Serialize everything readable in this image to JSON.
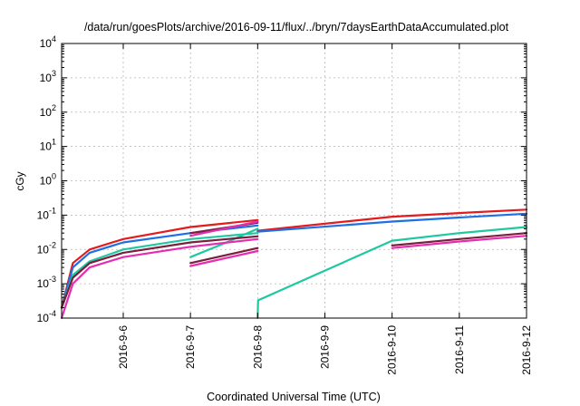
{
  "chart_data": {
    "type": "line",
    "title": "/data/run/goesPlots/archive/2016-09-11/flux/../bryn/7daysEarthDataAccumulated.plot",
    "xlabel": "Coordinated Universal Time (UTC)",
    "ylabel": "cGy",
    "y_scale": "log",
    "ylim": [
      0.0001,
      10000
    ],
    "y_ticks": [
      {
        "value": 0.0001,
        "base": "10",
        "exp": "-4"
      },
      {
        "value": 0.001,
        "base": "10",
        "exp": "-3"
      },
      {
        "value": 0.01,
        "base": "10",
        "exp": "-2"
      },
      {
        "value": 0.1,
        "base": "10",
        "exp": "-1"
      },
      {
        "value": 1,
        "base": "10",
        "exp": "0"
      },
      {
        "value": 10,
        "base": "10",
        "exp": "1"
      },
      {
        "value": 100,
        "base": "10",
        "exp": "2"
      },
      {
        "value": 1000,
        "base": "10",
        "exp": "3"
      },
      {
        "value": 10000,
        "base": "10",
        "exp": "4"
      }
    ],
    "xlim": [
      "2016-09-05 02:00",
      "2016-09-12 00:00"
    ],
    "x_ticks": [
      "2016-9-6",
      "2016-9-7",
      "2016-9-8",
      "2016-9-9",
      "2016-9-10",
      "2016-9-11",
      "2016-9-12"
    ],
    "grid": true,
    "legend": "none",
    "series": [
      {
        "color": "#e41a1c",
        "segments": [
          [
            [
              "2016-09-05 02:00",
              0.0002
            ],
            [
              "2016-09-05 06:00",
              0.004
            ],
            [
              "2016-09-05 12:00",
              0.01
            ],
            [
              "2016-09-06 00:00",
              0.02
            ],
            [
              "2016-09-07 00:00",
              0.045
            ],
            [
              "2016-09-08 00:00",
              0.072
            ]
          ],
          [
            [
              "2016-09-08 00:00",
              0.035
            ],
            [
              "2016-09-10 00:00",
              0.09
            ],
            [
              "2016-09-11 00:00",
              0.115
            ],
            [
              "2016-09-12 00:00",
              0.145
            ]
          ]
        ]
      },
      {
        "color": "#1f6fe5",
        "segments": [
          [
            [
              "2016-09-05 02:00",
              0.0002
            ],
            [
              "2016-09-05 06:00",
              0.003
            ],
            [
              "2016-09-05 12:00",
              0.008
            ],
            [
              "2016-09-06 00:00",
              0.016
            ],
            [
              "2016-09-07 00:00",
              0.03
            ],
            [
              "2016-09-08 00:00",
              0.05
            ]
          ],
          [
            [
              "2016-09-08 00:00",
              0.033
            ],
            [
              "2016-09-10 00:00",
              0.065
            ],
            [
              "2016-09-11 00:00",
              0.085
            ],
            [
              "2016-09-12 00:00",
              0.11
            ]
          ]
        ]
      },
      {
        "color": "#1ec8a0",
        "segments": [
          [
            [
              "2016-09-05 02:00",
              0.0002
            ],
            [
              "2016-09-05 06:00",
              0.0018
            ],
            [
              "2016-09-05 12:00",
              0.0045
            ],
            [
              "2016-09-06 00:00",
              0.01
            ],
            [
              "2016-09-07 00:00",
              0.02
            ],
            [
              "2016-09-08 00:00",
              0.03
            ]
          ],
          [
            [
              "2016-09-07 00:00",
              0.006
            ],
            [
              "2016-09-07 12:00",
              0.015
            ],
            [
              "2016-09-08 00:00",
              0.04
            ]
          ],
          [
            [
              "2016-09-08 00:00",
              0.0001
            ],
            [
              "2016-09-08 00:10",
              0.00033
            ],
            [
              "2016-09-10 00:00",
              0.018
            ],
            [
              "2016-09-11 00:00",
              0.03
            ],
            [
              "2016-09-12 00:00",
              0.045
            ]
          ]
        ]
      },
      {
        "color": "#7a1f3d",
        "segments": [
          [
            [
              "2016-09-05 02:00",
              0.0002
            ],
            [
              "2016-09-05 06:00",
              0.0015
            ],
            [
              "2016-09-05 12:00",
              0.004
            ],
            [
              "2016-09-06 00:00",
              0.008
            ],
            [
              "2016-09-07 00:00",
              0.016
            ],
            [
              "2016-09-08 00:00",
              0.024
            ]
          ],
          [
            [
              "2016-09-07 00:00",
              0.004
            ],
            [
              "2016-09-08 00:00",
              0.011
            ]
          ],
          [
            [
              "2016-09-07 00:00",
              0.03
            ],
            [
              "2016-09-08 00:00",
              0.06
            ]
          ],
          [
            [
              "2016-09-10 00:00",
              0.013
            ],
            [
              "2016-09-11 00:00",
              0.02
            ],
            [
              "2016-09-12 00:00",
              0.03
            ]
          ]
        ]
      },
      {
        "color": "#e62cb0",
        "segments": [
          [
            [
              "2016-09-05 02:00",
              0.0001
            ],
            [
              "2016-09-05 06:00",
              0.001
            ],
            [
              "2016-09-05 12:00",
              0.003
            ],
            [
              "2016-09-06 00:00",
              0.006
            ],
            [
              "2016-09-07 00:00",
              0.012
            ],
            [
              "2016-09-08 00:00",
              0.02
            ]
          ],
          [
            [
              "2016-09-07 00:00",
              0.0033
            ],
            [
              "2016-09-08 00:00",
              0.009
            ]
          ],
          [
            [
              "2016-09-07 00:00",
              0.025
            ],
            [
              "2016-09-08 00:00",
              0.065
            ]
          ],
          [
            [
              "2016-09-10 00:00",
              0.011
            ],
            [
              "2016-09-11 00:00",
              0.017
            ],
            [
              "2016-09-12 00:00",
              0.025
            ]
          ]
        ]
      }
    ]
  }
}
